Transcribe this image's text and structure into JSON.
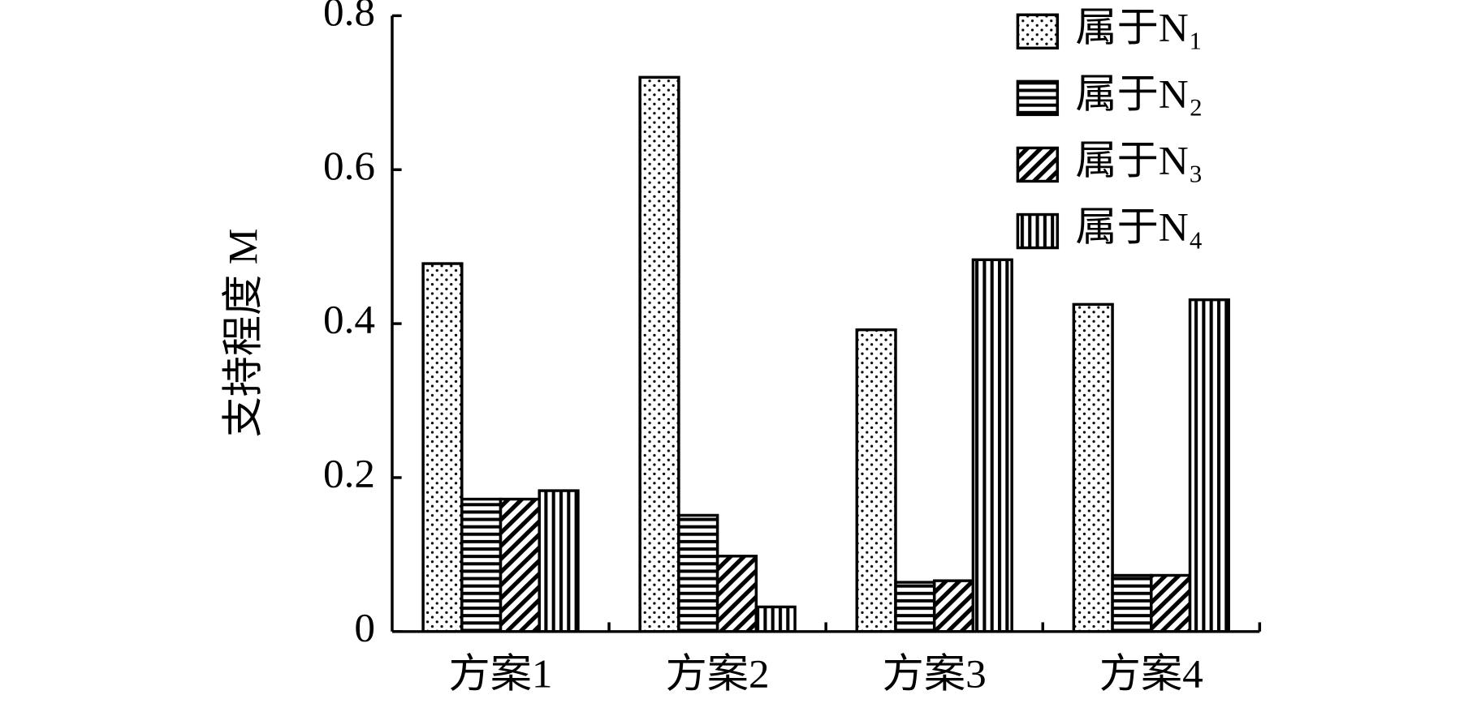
{
  "chart_data": {
    "type": "bar",
    "y_label": "支持程度 M",
    "categories": [
      "方案1",
      "方案2",
      "方案3",
      "方案4"
    ],
    "series": [
      {
        "name": "属于N₁",
        "color": "#000000",
        "pattern": "dots",
        "values": [
          0.478,
          0.72,
          0.392,
          0.425
        ]
      },
      {
        "name": "属于N₂",
        "color": "#000000",
        "pattern": "horizontal",
        "values": [
          0.172,
          0.151,
          0.064,
          0.073
        ]
      },
      {
        "name": "属于N₃",
        "color": "#000000",
        "pattern": "diagonal",
        "values": [
          0.172,
          0.098,
          0.066,
          0.073
        ]
      },
      {
        "name": "属于N₄",
        "color": "#000000",
        "pattern": "vertical",
        "values": [
          0.183,
          0.032,
          0.483,
          0.431
        ]
      }
    ],
    "ylim": [
      0,
      0.8
    ],
    "yticks": [
      0,
      0.2,
      0.4,
      0.6,
      0.8
    ],
    "grid": false,
    "legend": "upper right"
  }
}
